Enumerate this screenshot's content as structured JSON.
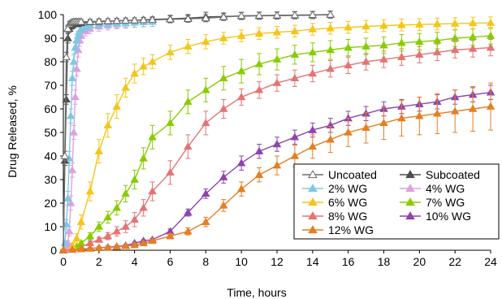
{
  "chart_data": {
    "type": "line",
    "xlabel": "Time, hours",
    "ylabel": "Drug Released, %",
    "xlim": [
      0,
      24
    ],
    "ylim": [
      0,
      100
    ],
    "xticks": [
      0,
      2,
      4,
      6,
      8,
      10,
      12,
      14,
      16,
      18,
      20,
      22,
      24
    ],
    "yticks": [
      0,
      10,
      20,
      30,
      40,
      50,
      60,
      70,
      80,
      90,
      100
    ],
    "grid": false,
    "error_bars": true,
    "legend": {
      "placement": "bottom-right",
      "columns": 2
    },
    "series": [
      {
        "name": "Uncoated",
        "color": "#6b6b6b",
        "marker": "triangle-open",
        "x": [
          0,
          0.083,
          0.167,
          0.25,
          0.333,
          0.417,
          0.5,
          0.583,
          0.667,
          0.75,
          0.833,
          0.917,
          1,
          1.5,
          2,
          2.5,
          3,
          3.5,
          4,
          4.5,
          5,
          6,
          7,
          8,
          9,
          10,
          11,
          12,
          13,
          14,
          15
        ],
        "y": [
          0,
          40,
          82,
          94,
          96,
          96.5,
          96.8,
          97,
          97,
          97,
          97,
          97,
          97,
          97,
          97.2,
          97.3,
          97.4,
          97.5,
          97.6,
          97.7,
          97.8,
          98,
          98.2,
          98.5,
          99,
          99.5,
          99.6,
          99.7,
          99.8,
          99.9,
          100
        ],
        "err": [
          0,
          2,
          2,
          1.5,
          1,
          1,
          1,
          1,
          1,
          1,
          1,
          1,
          1,
          1,
          1,
          1,
          1,
          1,
          1,
          1,
          1,
          1.5,
          1.5,
          1.5,
          1.5,
          1.5,
          1.5,
          1.5,
          1.5,
          1.5,
          1.5
        ]
      },
      {
        "name": "Subcoated",
        "color": "#4d4d4d",
        "marker": "triangle",
        "x": [
          0,
          0.083,
          0.167,
          0.25,
          0.333,
          0.417,
          0.5,
          0.583,
          0.667,
          0.75,
          0.833,
          0.917,
          1,
          1.5,
          2,
          2.5,
          3,
          3.5,
          4,
          4.5,
          5,
          6,
          7,
          8,
          9,
          10,
          11,
          12,
          13,
          14,
          15
        ],
        "y": [
          0,
          38,
          64,
          90,
          94,
          95,
          95.5,
          96,
          96,
          96,
          96.2,
          96.4,
          96.5,
          96.8,
          97,
          97.2,
          97.4,
          97.5,
          97.6,
          97.8,
          98,
          98.2,
          98.5,
          99,
          99.2,
          99.4,
          99.5,
          99.6,
          99.7,
          99.8,
          100
        ],
        "err": [
          0,
          2,
          2,
          2,
          1.5,
          1,
          1,
          1,
          1,
          1,
          1,
          1,
          1,
          1,
          1,
          1,
          1,
          1,
          1,
          1,
          1,
          1.5,
          1.5,
          2,
          1.5,
          1.5,
          1.5,
          1.5,
          1.5,
          1.5,
          1.5
        ]
      },
      {
        "name": "2% WG",
        "color": "#7ec8e3",
        "marker": "triangle",
        "x": [
          0,
          0.083,
          0.167,
          0.25,
          0.333,
          0.417,
          0.5,
          0.583,
          0.667,
          0.75,
          0.833,
          0.917,
          1,
          1.25,
          1.5,
          2,
          2.5,
          3,
          3.5,
          4,
          4.5,
          5
        ],
        "y": [
          0,
          3,
          11,
          22,
          39,
          57,
          73,
          80,
          86,
          89,
          91,
          93,
          94,
          95,
          95.5,
          96,
          96.2,
          96.4,
          96.5,
          96.7,
          96.9,
          97
        ],
        "err": [
          0,
          1,
          2,
          3,
          3,
          3,
          3,
          3,
          2.5,
          2.5,
          2,
          2,
          2,
          2,
          2,
          2,
          2,
          2,
          2,
          2,
          2,
          2
        ]
      },
      {
        "name": "4% WG",
        "color": "#e0a0e0",
        "marker": "triangle",
        "x": [
          0,
          0.083,
          0.167,
          0.25,
          0.333,
          0.417,
          0.5,
          0.583,
          0.667,
          0.75,
          0.833,
          0.917,
          1,
          1.25,
          1.5,
          2,
          2.5,
          3,
          3.5,
          4,
          4.5,
          5
        ],
        "y": [
          0,
          0.5,
          1,
          3,
          8,
          20,
          34,
          50,
          65,
          77,
          85,
          89,
          91,
          93,
          94,
          95,
          95.5,
          96,
          96.3,
          96.6,
          96.8,
          97
        ],
        "err": [
          0,
          0.5,
          0.5,
          1,
          2,
          3,
          3,
          3,
          3,
          3,
          3,
          2.5,
          2.5,
          2,
          2,
          2,
          2,
          2,
          2,
          2,
          2,
          2
        ]
      },
      {
        "name": "6% WG",
        "color": "#f5c518",
        "marker": "triangle",
        "x": [
          0,
          0.25,
          0.5,
          0.75,
          1,
          1.5,
          2,
          2.5,
          3,
          3.5,
          4,
          4.5,
          5,
          6,
          7,
          8,
          9,
          10,
          11,
          12,
          13,
          14,
          15,
          16,
          17,
          18,
          19,
          20,
          21,
          22,
          23,
          24
        ],
        "y": [
          0,
          0.5,
          2,
          5,
          12,
          25,
          42,
          53,
          61,
          69,
          75,
          78,
          80,
          84,
          86.5,
          88.5,
          90,
          91,
          92,
          92.5,
          93,
          93.8,
          94.2,
          94.6,
          95,
          95.3,
          95.6,
          95.8,
          96,
          96.2,
          96.4,
          96.5
        ],
        "err": [
          0,
          0.5,
          1,
          2,
          3,
          4,
          5,
          5,
          5,
          4,
          4,
          3.5,
          3,
          3,
          3,
          3,
          2.5,
          2.5,
          2.5,
          2.5,
          2.5,
          2.5,
          2.5,
          2.5,
          2.5,
          2.5,
          2.5,
          2.5,
          2.5,
          2.5,
          2.5,
          2.5
        ]
      },
      {
        "name": "7% WG",
        "color": "#88cc00",
        "marker": "triangle",
        "x": [
          0,
          0.25,
          0.5,
          0.75,
          1,
          1.5,
          2,
          2.5,
          3,
          3.5,
          4,
          4.5,
          5,
          6,
          7,
          8,
          9,
          10,
          11,
          12,
          13,
          14,
          15,
          16,
          17,
          18,
          19,
          20,
          21,
          22,
          23,
          24
        ],
        "y": [
          0,
          0.5,
          1,
          1.5,
          3,
          6,
          10,
          14,
          18,
          24,
          30,
          39,
          48,
          54,
          63,
          68,
          73,
          76,
          79,
          81,
          83,
          84,
          85,
          86,
          86.5,
          87,
          88,
          88.5,
          89,
          90,
          90.5,
          91
        ],
        "err": [
          0,
          0.5,
          0.5,
          0.5,
          1,
          1.5,
          2,
          2.5,
          3,
          3.5,
          4,
          4.5,
          5,
          5,
          5,
          5,
          5,
          5,
          4.5,
          4.5,
          4,
          4,
          4,
          3.5,
          3.5,
          3.5,
          3.5,
          3.5,
          3.5,
          3.5,
          3.5,
          3.5
        ]
      },
      {
        "name": "8% WG",
        "color": "#e57373",
        "marker": "triangle",
        "x": [
          0,
          0.25,
          0.5,
          0.75,
          1,
          1.5,
          2,
          2.5,
          3,
          3.5,
          4,
          4.5,
          5,
          6,
          7,
          8,
          9,
          10,
          11,
          12,
          13,
          14,
          15,
          16,
          17,
          18,
          19,
          20,
          21,
          22,
          23,
          24
        ],
        "y": [
          0,
          0.3,
          0.5,
          1,
          1.5,
          3,
          4.5,
          6,
          8,
          10,
          13,
          18,
          25,
          33,
          44,
          54,
          60,
          65,
          68,
          71,
          73,
          75,
          77,
          78.5,
          80,
          81,
          82,
          83,
          84,
          85,
          85.5,
          86
        ],
        "err": [
          0,
          0.3,
          0.3,
          0.5,
          0.5,
          1,
          1,
          1.5,
          2,
          2.5,
          3,
          3.5,
          4,
          5,
          5,
          5,
          4,
          3.5,
          3.5,
          3.5,
          3.5,
          3.5,
          3.5,
          3.5,
          3.5,
          3.5,
          3.5,
          3.5,
          3.5,
          3.5,
          3.5,
          3.5
        ]
      },
      {
        "name": "10% WG",
        "color": "#8e44ad",
        "marker": "triangle",
        "x": [
          0,
          0.5,
          1,
          1.5,
          2,
          2.5,
          3,
          3.5,
          4,
          4.5,
          5,
          6,
          7,
          8,
          9,
          10,
          11,
          12,
          13,
          14,
          15,
          16,
          17,
          18,
          19,
          20,
          21,
          22,
          23,
          24
        ],
        "y": [
          0,
          0.3,
          0.5,
          0.8,
          1,
          1.3,
          1.6,
          2,
          3,
          4,
          4.5,
          8,
          16,
          24,
          31,
          37,
          42,
          45,
          48,
          51,
          53,
          56,
          58,
          60,
          61,
          62,
          63,
          65,
          66,
          67
        ],
        "err": [
          0,
          0.3,
          0.3,
          0.3,
          0.5,
          0.5,
          0.5,
          0.5,
          0.5,
          0.5,
          0.5,
          1,
          1.5,
          2,
          2.5,
          3,
          3,
          3,
          3,
          3,
          3,
          3,
          3,
          3,
          3,
          3,
          3,
          3,
          3,
          3
        ]
      },
      {
        "name": "12% WG",
        "color": "#e67e22",
        "marker": "triangle",
        "x": [
          0,
          0.5,
          1,
          1.5,
          2,
          2.5,
          3,
          3.5,
          4,
          4.5,
          5,
          6,
          7,
          8,
          9,
          10,
          11,
          12,
          13,
          14,
          15,
          16,
          17,
          18,
          19,
          20,
          21,
          22,
          23,
          24
        ],
        "y": [
          0,
          0.2,
          0.5,
          0.7,
          1,
          1.2,
          1.5,
          1.8,
          2.2,
          3,
          4,
          6,
          8,
          12,
          19,
          26,
          32,
          36,
          40,
          44,
          47,
          50,
          52,
          54,
          56,
          57,
          58,
          59,
          60,
          61
        ],
        "err": [
          0,
          0.2,
          0.3,
          0.3,
          0.3,
          0.3,
          0.5,
          0.5,
          0.5,
          0.5,
          0.5,
          1,
          1.5,
          2,
          2.5,
          3,
          3,
          4,
          4.5,
          5,
          5.5,
          6,
          6.5,
          7,
          7.5,
          8,
          8.5,
          9,
          9.5,
          10
        ]
      }
    ]
  }
}
